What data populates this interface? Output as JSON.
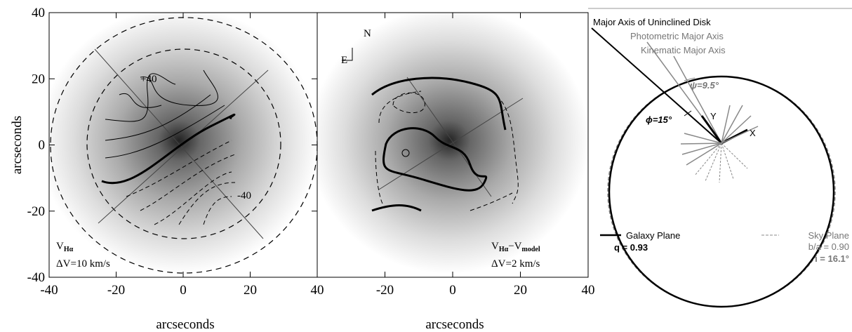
{
  "chart_data": [
    {
      "type": "image",
      "xlabel": "arcseconds",
      "ylabel": "arcseconds",
      "xlim": [
        -40,
        40
      ],
      "ylim": [
        -40,
        40
      ],
      "xticks": [
        -40,
        -20,
        0,
        20,
        40
      ],
      "yticks": [
        -40,
        -20,
        0,
        20,
        40
      ],
      "annotations": [
        "+40",
        "-40"
      ],
      "panel_label": [
        "V",
        "Hα"
      ],
      "delta_label": "ΔV=10 km/s"
    },
    {
      "type": "image",
      "xlabel": "arcseconds",
      "xlim": [
        -40,
        40
      ],
      "ylim": [
        -40,
        40
      ],
      "xticks": [
        -20,
        0,
        20,
        40
      ],
      "annotations": [
        "N",
        "E"
      ],
      "panel_label": [
        "V",
        "Hα",
        "−V",
        "model"
      ],
      "delta_label": "ΔV=2 km/s"
    }
  ],
  "diagram": {
    "axis_labels": [
      "Major Axis of Uninclined Disk",
      "Photometric Major Axis",
      "Kinematic Major Axis"
    ],
    "angles": [
      "ψ=9.5°",
      "ϕ=15°"
    ],
    "axes": [
      "Y",
      "X"
    ],
    "legend": [
      {
        "name": "Galaxy Plane",
        "lines": [
          "q = 0.93"
        ]
      },
      {
        "name": "Sky Plane",
        "lines": [
          "b/a = 0.90",
          "i = 16.1°"
        ]
      }
    ]
  }
}
